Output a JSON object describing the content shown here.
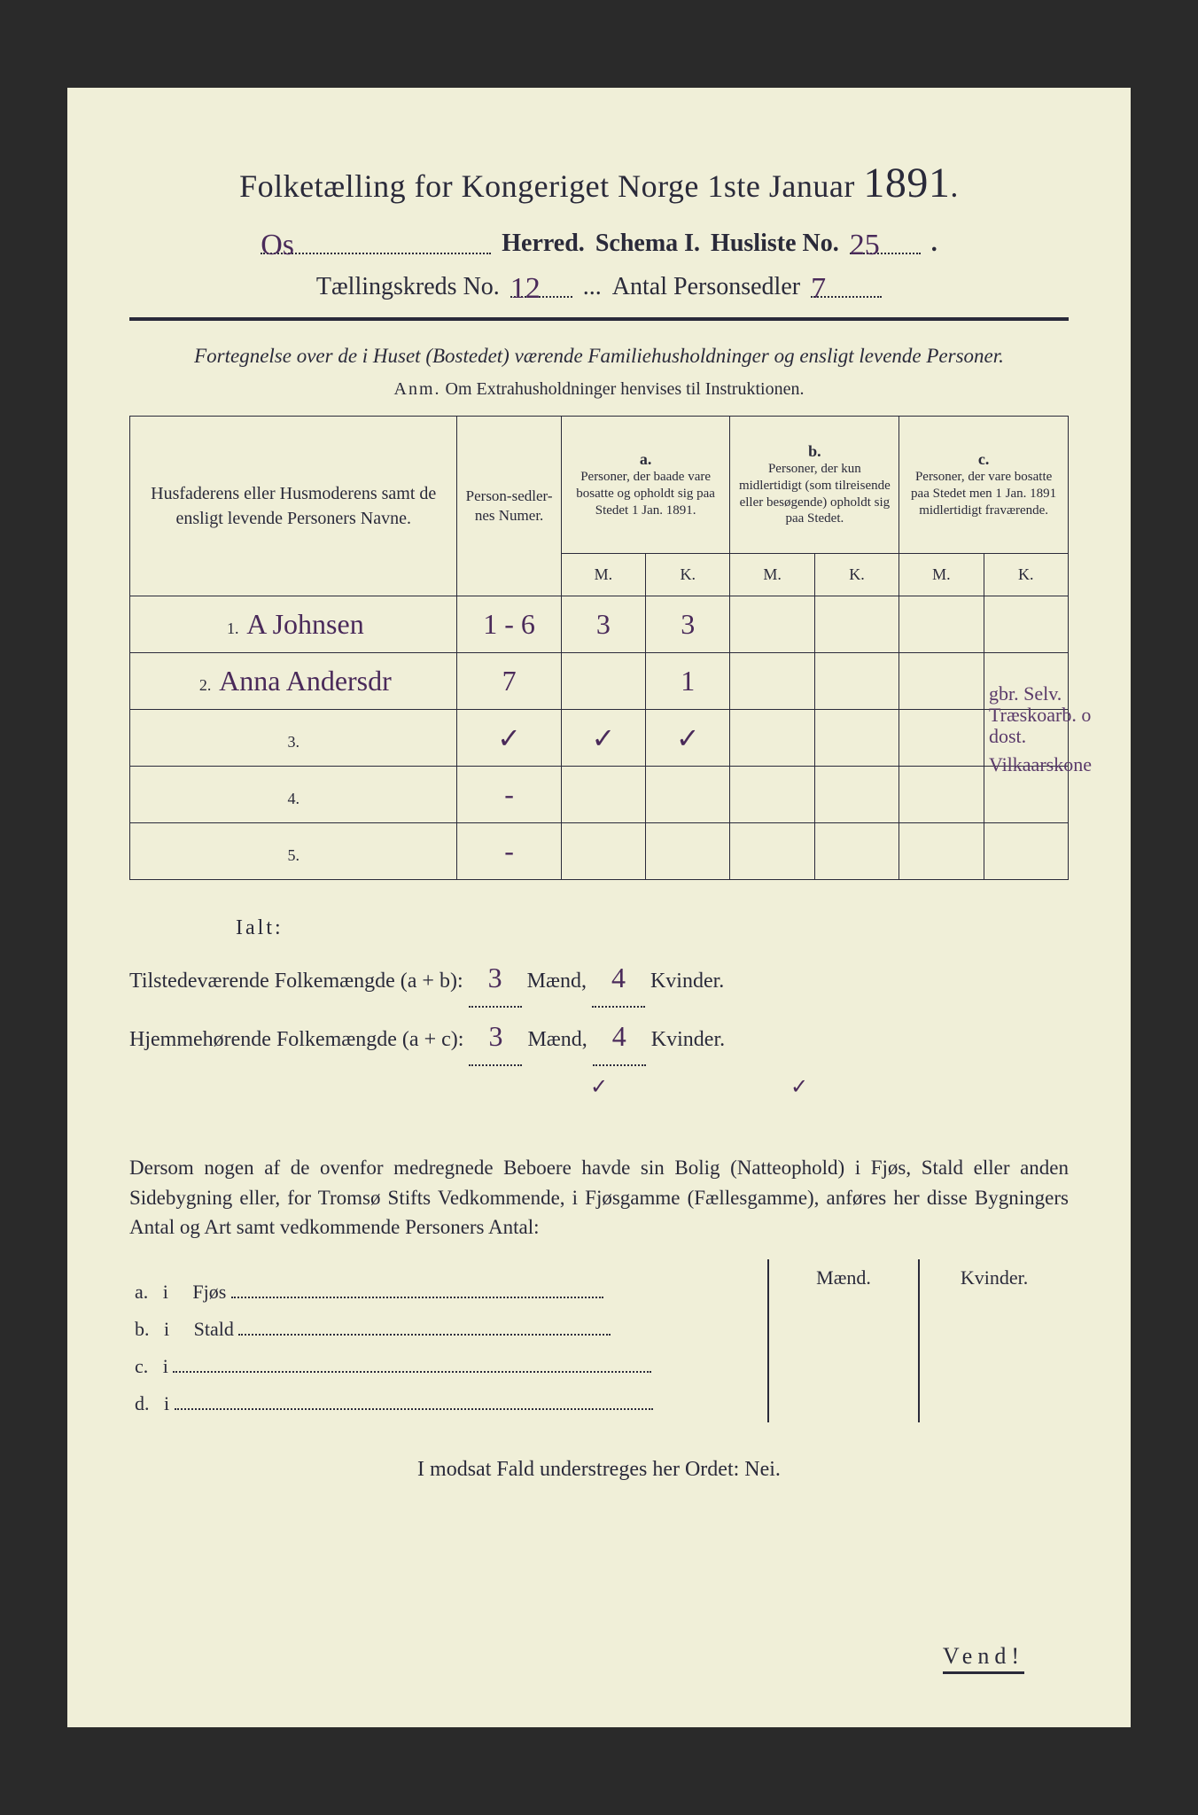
{
  "colors": {
    "paper": "#f0efd8",
    "ink": "#2a2a3a",
    "handwriting": "#4a2a5a",
    "background": "#2a2a2a"
  },
  "title": {
    "prefix": "Folketælling for Kongeriget Norge 1ste Januar",
    "year": "1891",
    "suffix": "."
  },
  "header": {
    "herred_value": "Os",
    "herred_label": "Herred.",
    "schema_label": "Schema I.",
    "husliste_label": "Husliste No.",
    "husliste_value": "25",
    "kreds_label": "Tællingskreds No.",
    "kreds_value": "12",
    "personsedler_label": "Antal Personsedler",
    "personsedler_value": "7"
  },
  "instruction": "Fortegnelse over de i Huset (Bostedet) værende Familiehusholdninger og ensligt levende Personer.",
  "anm": {
    "label": "Anm.",
    "text": "Om Extrahusholdninger henvises til Instruktionen."
  },
  "table": {
    "head": {
      "names": "Husfaderens eller Husmoderens samt de ensligt levende Personers Navne.",
      "num": "Person-sedler-nes Numer.",
      "a_label": "a.",
      "a_text": "Personer, der baade vare bosatte og opholdt sig paa Stedet 1 Jan. 1891.",
      "b_label": "b.",
      "b_text": "Personer, der kun midlertidigt (som tilreisende eller besøgende) opholdt sig paa Stedet.",
      "c_label": "c.",
      "c_text": "Personer, der vare bosatte paa Stedet men 1 Jan. 1891 midlertidigt fraværende.",
      "m": "M.",
      "k": "K."
    },
    "rows": [
      {
        "n": "1.",
        "name": "A Johnsen",
        "num": "1 - 6",
        "a_m": "3",
        "a_k": "3",
        "b_m": "",
        "b_k": "",
        "c_m": "",
        "c_k": "",
        "note": "gbr. Selv. Træskoarb. o dost."
      },
      {
        "n": "2.",
        "name": "Anna Andersdr",
        "num": "7",
        "a_m": "",
        "a_k": "1",
        "b_m": "",
        "b_k": "",
        "c_m": "",
        "c_k": "",
        "note": "Vilkaarskone"
      },
      {
        "n": "3.",
        "name": "",
        "num": "✓",
        "a_m": "✓",
        "a_k": "✓",
        "b_m": "",
        "b_k": "",
        "c_m": "",
        "c_k": "",
        "note": ""
      },
      {
        "n": "4.",
        "name": "",
        "num": "-",
        "a_m": "",
        "a_k": "",
        "b_m": "",
        "b_k": "",
        "c_m": "",
        "c_k": "",
        "note": ""
      },
      {
        "n": "5.",
        "name": "",
        "num": "-",
        "a_m": "",
        "a_k": "",
        "b_m": "",
        "b_k": "",
        "c_m": "",
        "c_k": "",
        "note": ""
      }
    ]
  },
  "totals": {
    "ialt": "Ialt:",
    "line1_label": "Tilstedeværende Folkemængde (a + b):",
    "line2_label": "Hjemmehørende Folkemængde (a + c):",
    "maend": "Mænd,",
    "kvinder": "Kvinder.",
    "v1_m": "3",
    "v1_k": "4",
    "v2_m": "3",
    "v2_k": "4",
    "check1": "✓",
    "check2": "✓"
  },
  "paragraph": "Dersom nogen af de ovenfor medregnede Beboere havde sin Bolig (Natteophold) i Fjøs, Stald eller anden Sidebygning eller, for Tromsø Stifts Vedkommende, i Fjøsgamme (Fællesgamme), anføres her disse Bygningers Antal og Art samt vedkommende Personers Antal:",
  "lower": {
    "maend": "Mænd.",
    "kvinder": "Kvinder.",
    "rows": [
      {
        "l": "a.",
        "i": "i",
        "t": "Fjøs"
      },
      {
        "l": "b.",
        "i": "i",
        "t": "Stald"
      },
      {
        "l": "c.",
        "i": "i",
        "t": ""
      },
      {
        "l": "d.",
        "i": "i",
        "t": ""
      }
    ]
  },
  "bottom": "I modsat Fald understreges her Ordet: Nei.",
  "vend": "Vend!"
}
